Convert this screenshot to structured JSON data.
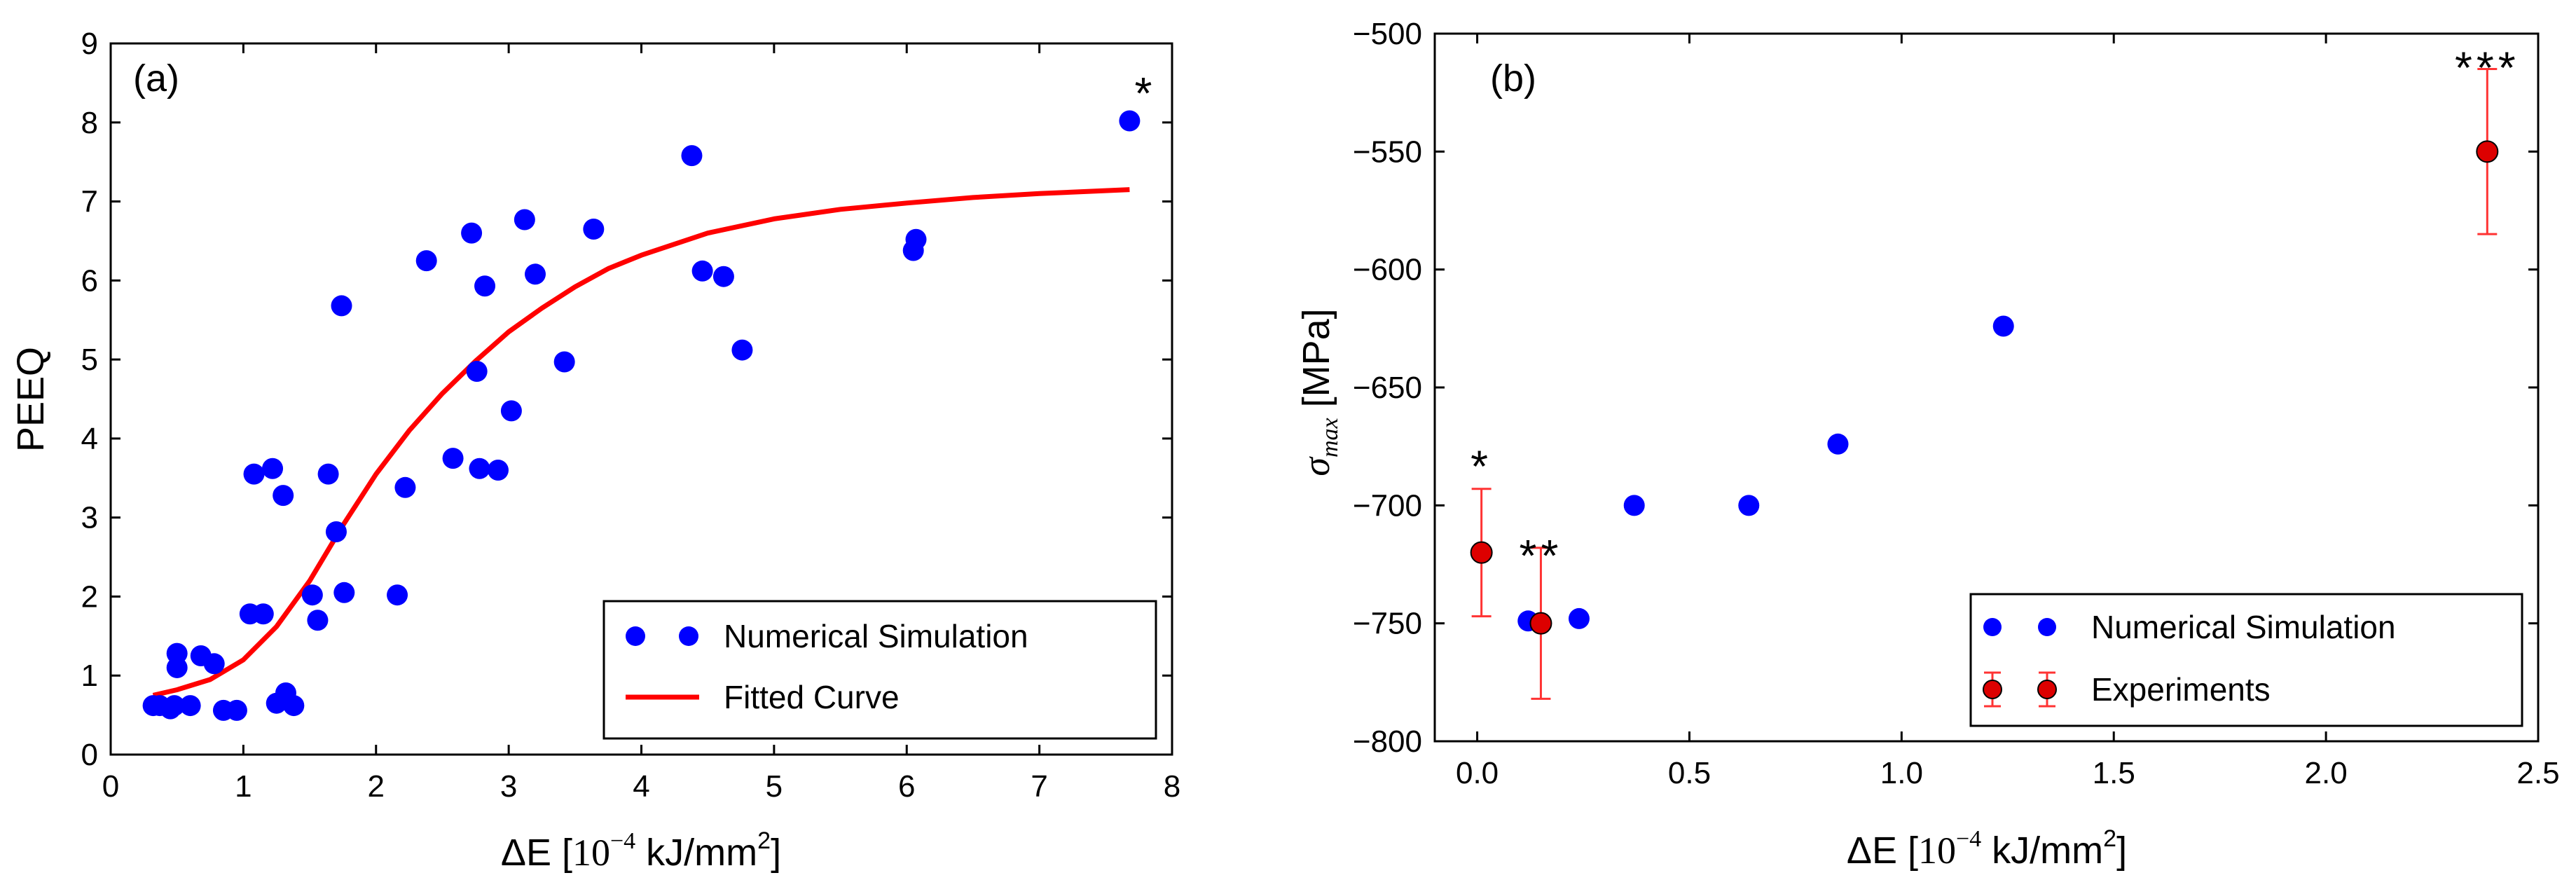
{
  "chart_data": [
    {
      "panel": "(a)",
      "type": "scatter",
      "xlabel_prefix": "ΔE [",
      "xlabel_unit_base": "10",
      "xlabel_unit_exp": "−4",
      "xlabel_unit_mid": " kJ/mm",
      "xlabel_unit_exp2": "2",
      "xlabel_suffix": "]",
      "ylabel": "PEEQ",
      "xlim": [
        0,
        8
      ],
      "ylim": [
        0,
        9
      ],
      "xticks": [
        0,
        1,
        2,
        3,
        4,
        5,
        6,
        7,
        8
      ],
      "yticks": [
        0,
        1,
        2,
        3,
        4,
        5,
        6,
        7,
        8,
        9
      ],
      "grid": false,
      "legend_position": "lower-right",
      "annotations": [
        {
          "text": "*",
          "x": 7.68,
          "y": 8.4
        }
      ],
      "series": [
        {
          "name": "Numerical Simulation",
          "kind": "points",
          "color": "#0000ff",
          "points": [
            [
              0.32,
              0.62
            ],
            [
              0.37,
              0.62
            ],
            [
              0.45,
              0.58
            ],
            [
              0.48,
              0.62
            ],
            [
              0.5,
              1.1
            ],
            [
              0.5,
              1.28
            ],
            [
              0.6,
              0.62
            ],
            [
              0.68,
              1.25
            ],
            [
              0.78,
              1.15
            ],
            [
              0.85,
              0.56
            ],
            [
              0.95,
              0.56
            ],
            [
              1.05,
              1.78
            ],
            [
              1.08,
              3.55
            ],
            [
              1.15,
              1.78
            ],
            [
              1.22,
              3.62
            ],
            [
              1.25,
              0.65
            ],
            [
              1.3,
              3.28
            ],
            [
              1.32,
              0.78
            ],
            [
              1.38,
              0.62
            ],
            [
              1.52,
              2.02
            ],
            [
              1.56,
              1.7
            ],
            [
              1.64,
              3.55
            ],
            [
              1.7,
              2.82
            ],
            [
              1.74,
              5.68
            ],
            [
              1.76,
              2.05
            ],
            [
              2.16,
              2.02
            ],
            [
              2.22,
              3.38
            ],
            [
              2.38,
              6.25
            ],
            [
              2.58,
              3.75
            ],
            [
              2.72,
              6.6
            ],
            [
              2.76,
              4.85
            ],
            [
              2.78,
              3.62
            ],
            [
              2.82,
              5.93
            ],
            [
              2.92,
              3.6
            ],
            [
              3.02,
              4.35
            ],
            [
              3.12,
              6.77
            ],
            [
              3.2,
              6.08
            ],
            [
              3.42,
              4.97
            ],
            [
              3.64,
              6.65
            ],
            [
              4.38,
              7.58
            ],
            [
              4.46,
              6.12
            ],
            [
              4.62,
              6.05
            ],
            [
              4.76,
              5.12
            ],
            [
              6.05,
              6.38
            ],
            [
              6.07,
              6.52
            ],
            [
              7.68,
              8.02
            ]
          ]
        },
        {
          "name": "Fitted Curve",
          "kind": "line",
          "color": "#ff0000",
          "points": [
            [
              0.32,
              0.75
            ],
            [
              0.5,
              0.82
            ],
            [
              0.75,
              0.95
            ],
            [
              1.0,
              1.2
            ],
            [
              1.25,
              1.62
            ],
            [
              1.5,
              2.2
            ],
            [
              1.75,
              2.9
            ],
            [
              2.0,
              3.55
            ],
            [
              2.25,
              4.1
            ],
            [
              2.5,
              4.57
            ],
            [
              2.75,
              4.98
            ],
            [
              3.0,
              5.35
            ],
            [
              3.25,
              5.65
            ],
            [
              3.5,
              5.92
            ],
            [
              3.75,
              6.15
            ],
            [
              4.0,
              6.32
            ],
            [
              4.5,
              6.6
            ],
            [
              5.0,
              6.78
            ],
            [
              5.5,
              6.9
            ],
            [
              6.0,
              6.98
            ],
            [
              6.5,
              7.05
            ],
            [
              7.0,
              7.1
            ],
            [
              7.68,
              7.15
            ]
          ]
        }
      ]
    },
    {
      "panel": "(b)",
      "type": "scatter",
      "xlabel_prefix": "ΔE [",
      "xlabel_unit_base": "10",
      "xlabel_unit_exp": "−4",
      "xlabel_unit_mid": " kJ/mm",
      "xlabel_unit_exp2": "2",
      "xlabel_suffix": "]",
      "ylabel_symbol": "σ",
      "ylabel_sub": "max",
      "ylabel_unit": " [MPa]",
      "xlim": [
        -0.1,
        2.5
      ],
      "ylim": [
        -800,
        -500
      ],
      "xticks": [
        "0.0",
        "0.5",
        "1.0",
        "1.5",
        "2.0",
        "2.5"
      ],
      "yticks": [
        "−800",
        "−750",
        "−700",
        "−650",
        "−600",
        "−550",
        "−500"
      ],
      "grid": false,
      "legend_position": "lower-right",
      "annotations": [
        {
          "text": "*",
          "x": 0.01,
          "y": -678
        },
        {
          "text": "**",
          "x": 0.15,
          "y": -716
        },
        {
          "text": "***",
          "x": 2.38,
          "y": -509
        }
      ],
      "series": [
        {
          "name": "Numerical Simulation",
          "kind": "points",
          "color": "#0000ff",
          "points": [
            [
              0.12,
              -749
            ],
            [
              0.24,
              -748
            ],
            [
              0.37,
              -700
            ],
            [
              0.64,
              -700
            ],
            [
              0.85,
              -674
            ],
            [
              1.24,
              -624
            ]
          ]
        },
        {
          "name": "Experiments",
          "kind": "errorbar",
          "color": "#ff0000",
          "points": [
            {
              "x": 0.01,
              "y": -720,
              "yerr": 27
            },
            {
              "x": 0.15,
              "y": -750,
              "yerr": 32
            },
            {
              "x": 2.38,
              "y": -550,
              "yerr": 35
            }
          ]
        }
      ]
    }
  ]
}
